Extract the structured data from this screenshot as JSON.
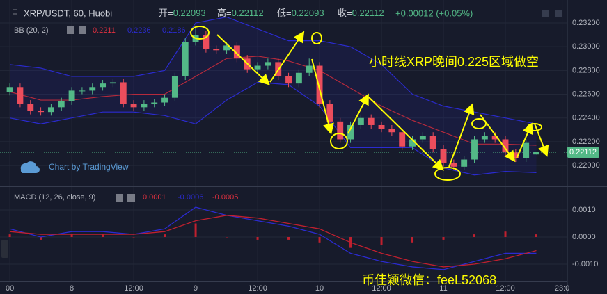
{
  "chart_data": [
    {
      "type": "candlestick",
      "title": "XRP/USDT, 60, Huobi",
      "header_fields": [
        {
          "label": "开=",
          "value": "0.22093"
        },
        {
          "label": "高=",
          "value": "0.22112"
        },
        {
          "label": "低=",
          "value": "0.22093"
        },
        {
          "label": "收=",
          "value": "0.22112"
        }
      ],
      "change": "+0.00012 (+0.05%)",
      "indicator": {
        "name": "BB (20, 2)",
        "values": [
          "0.2211",
          "0.2236",
          "0.2186"
        ],
        "colors": [
          "#e0303f",
          "#2b2bd0",
          "#2b2bd0"
        ]
      },
      "watermark": "Chart by TradingView",
      "annotations": [
        "小时线XRP晚间0.225区域做空",
        "币佳颖微信：feeL52068"
      ],
      "x": [
        -12,
        -10,
        -8,
        -6,
        -4,
        -2,
        0,
        2,
        4,
        6,
        8,
        10,
        12,
        14,
        16,
        18,
        20,
        22,
        24,
        26,
        28,
        30,
        32,
        34,
        36,
        38,
        40,
        42,
        44,
        46,
        48,
        50,
        52,
        54,
        56,
        58,
        60,
        62,
        64,
        66,
        68,
        70,
        72,
        74,
        76,
        78,
        80,
        82,
        84,
        86,
        88,
        90
      ],
      "open": [
        0.2262,
        0.2266,
        0.2252,
        0.2246,
        0.2245,
        0.2249,
        0.2254,
        0.2263,
        0.2263,
        0.2266,
        0.2269,
        0.227,
        0.2252,
        0.2249,
        0.2252,
        0.2253,
        0.2257,
        0.2275,
        0.2304,
        0.231,
        0.2298,
        0.2297,
        0.2301,
        0.229,
        0.2281,
        0.2284,
        0.2287,
        0.2275,
        0.2269,
        0.2278,
        0.2284,
        0.2252,
        0.2237,
        0.2222,
        0.2234,
        0.224,
        0.2234,
        0.2231,
        0.2228,
        0.2216,
        0.2222,
        0.2225,
        0.2214,
        0.2202,
        0.2199,
        0.2205,
        0.2222,
        0.2225,
        0.2222,
        0.2211,
        0.2206,
        0.22093
      ],
      "high": [
        0.2269,
        0.2269,
        0.2255,
        0.2249,
        0.2252,
        0.2257,
        0.2266,
        0.2266,
        0.2269,
        0.2272,
        0.2273,
        0.2273,
        0.2255,
        0.2255,
        0.2256,
        0.226,
        0.2278,
        0.2307,
        0.2316,
        0.2313,
        0.2301,
        0.2304,
        0.2304,
        0.2293,
        0.2287,
        0.229,
        0.229,
        0.2278,
        0.2281,
        0.229,
        0.2287,
        0.2255,
        0.224,
        0.2237,
        0.2243,
        0.2243,
        0.2237,
        0.2234,
        0.2231,
        0.2225,
        0.2228,
        0.2228,
        0.2217,
        0.2205,
        0.2208,
        0.2225,
        0.2228,
        0.2228,
        0.2225,
        0.2214,
        0.2222,
        0.22112
      ],
      "low": [
        0.2259,
        0.2249,
        0.2243,
        0.2242,
        0.2242,
        0.2246,
        0.2251,
        0.226,
        0.226,
        0.2263,
        0.2266,
        0.2249,
        0.2246,
        0.2246,
        0.2249,
        0.225,
        0.2254,
        0.2272,
        0.2301,
        0.2295,
        0.2294,
        0.2294,
        0.2287,
        0.2278,
        0.2278,
        0.2281,
        0.2272,
        0.2266,
        0.2266,
        0.2275,
        0.2249,
        0.2234,
        0.2219,
        0.2219,
        0.2231,
        0.2231,
        0.2228,
        0.2225,
        0.2213,
        0.2213,
        0.2219,
        0.2211,
        0.2199,
        0.2196,
        0.2196,
        0.2202,
        0.2219,
        0.2219,
        0.2208,
        0.2203,
        0.2203,
        0.22093
      ],
      "close": [
        0.2266,
        0.2252,
        0.2246,
        0.2245,
        0.2249,
        0.2254,
        0.2263,
        0.2263,
        0.2266,
        0.2269,
        0.227,
        0.2252,
        0.2249,
        0.2252,
        0.2253,
        0.2257,
        0.2275,
        0.2304,
        0.231,
        0.2298,
        0.2297,
        0.2301,
        0.229,
        0.2281,
        0.2284,
        0.2287,
        0.2275,
        0.2269,
        0.2278,
        0.2284,
        0.2252,
        0.2237,
        0.2222,
        0.2234,
        0.224,
        0.2234,
        0.2231,
        0.2228,
        0.2216,
        0.2222,
        0.2225,
        0.2214,
        0.2202,
        0.2199,
        0.2205,
        0.2222,
        0.2225,
        0.2222,
        0.2211,
        0.2206,
        0.2219,
        0.22112
      ],
      "up_color": "#53b987",
      "down_color": "#eb4d5c",
      "bands": {
        "x": [
          -12,
          -6,
          0,
          6,
          12,
          18,
          24,
          30,
          36,
          42,
          48,
          54,
          60,
          66,
          72,
          78,
          84,
          90
        ],
        "upper": [
          0.2285,
          0.2282,
          0.2275,
          0.2275,
          0.2275,
          0.228,
          0.232,
          0.2325,
          0.2315,
          0.2305,
          0.2305,
          0.23,
          0.2285,
          0.226,
          0.225,
          0.2245,
          0.224,
          0.2235
        ],
        "middle": [
          0.2262,
          0.2255,
          0.2255,
          0.2258,
          0.226,
          0.226,
          0.2275,
          0.229,
          0.2292,
          0.2288,
          0.228,
          0.2265,
          0.225,
          0.2238,
          0.2228,
          0.2218,
          0.2218,
          0.2217
        ],
        "lower": [
          0.224,
          0.2235,
          0.224,
          0.2245,
          0.2245,
          0.2242,
          0.2235,
          0.2255,
          0.227,
          0.2268,
          0.225,
          0.2215,
          0.2215,
          0.2215,
          0.2198,
          0.2192,
          0.2195,
          0.2194
        ],
        "band_color": "#2b2bd0",
        "middle_color": "#b52a3c"
      },
      "xlim": [
        -13.9,
        96
      ],
      "ylim": [
        0.21825,
        0.23393
      ],
      "yticks": [
        {
          "value": 0.232,
          "label": "0.23200"
        },
        {
          "value": 0.23,
          "label": "0.23000"
        },
        {
          "value": 0.228,
          "label": "0.22800"
        },
        {
          "value": 0.226,
          "label": "0.22600"
        },
        {
          "value": 0.224,
          "label": "0.22400"
        },
        {
          "value": 0.222,
          "label": "0.22200"
        },
        {
          "value": 0.22,
          "label": "0.22000"
        }
      ],
      "grid": true
    },
    {
      "type": "macd",
      "title": "MACD (12, 26, close, 9)",
      "legend_values": [
        "0.0001",
        "-0.0006",
        "-0.0005"
      ],
      "legend_colors": [
        "#e0303f",
        "#2b2bd0",
        "#e0303f"
      ],
      "x": [
        -12,
        -6,
        0,
        6,
        12,
        18,
        24,
        30,
        36,
        42,
        48,
        54,
        60,
        66,
        72,
        78,
        84,
        90
      ],
      "macd": [
        0.0003,
        0.0,
        0.0002,
        0.0002,
        0.0001,
        0.0003,
        0.0011,
        0.0008,
        0.0006,
        0.0004,
        0.0001,
        -0.0006,
        -0.0009,
        -0.0011,
        -0.0012,
        -0.0009,
        -0.0006,
        -0.0006
      ],
      "signal": [
        0.0002,
        0.0001,
        0.0001,
        0.0001,
        0.0001,
        0.0002,
        0.0006,
        0.0008,
        0.0007,
        0.0005,
        0.0003,
        -0.0002,
        -0.0006,
        -0.0009,
        -0.0011,
        -0.001,
        -0.0008,
        -0.0005
      ],
      "histogram": [
        0.0001,
        -0.0001,
        0.0001,
        0.0001,
        0,
        0.0001,
        0.0005,
        0,
        -0.0001,
        -0.0001,
        -0.0002,
        -0.0004,
        -0.0003,
        -0.0002,
        -0.0001,
        0.0001,
        0.0002,
        0.0001
      ],
      "macd_color": "#2b2bd0",
      "signal_color": "#c0202f",
      "histogram_color": "#c0202f",
      "xlim": [
        -13.9,
        96
      ],
      "ylim": [
        -0.00164,
        0.00182
      ],
      "yticks": [
        {
          "value": 0.001,
          "label": "0.0010"
        },
        {
          "value": 0,
          "label": "0.0000"
        },
        {
          "value": -0.001,
          "label": "-0.0010"
        }
      ],
      "xticks": [
        {
          "value": -12,
          "label": "00"
        },
        {
          "value": 0,
          "label": "8"
        },
        {
          "value": 12,
          "label": "12:00"
        },
        {
          "value": 24,
          "label": "9"
        },
        {
          "value": 36,
          "label": "12:00"
        },
        {
          "value": 48,
          "label": "10"
        },
        {
          "value": 60,
          "label": "12:00"
        },
        {
          "value": 72,
          "label": "11"
        },
        {
          "value": 84,
          "label": "12:00"
        },
        {
          "value": 95,
          "label": "23:0"
        }
      ],
      "grid": true
    }
  ]
}
